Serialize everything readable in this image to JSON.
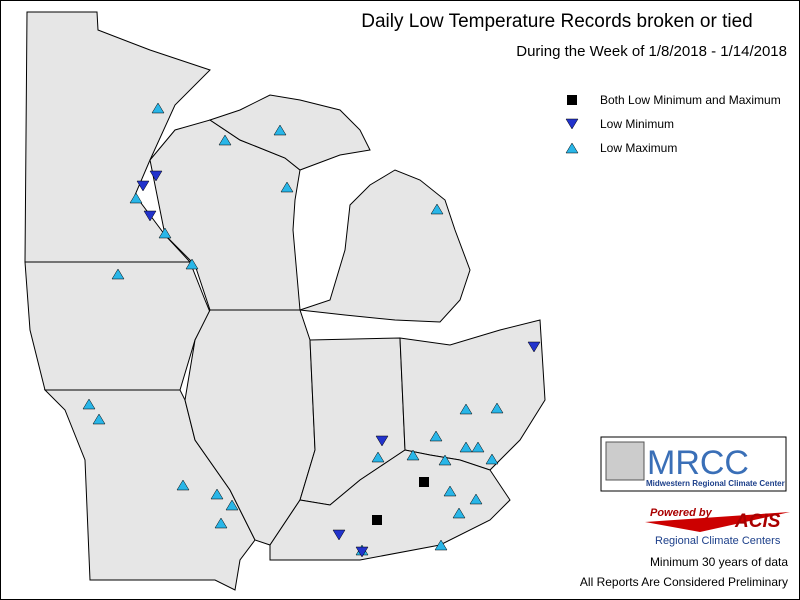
{
  "header": {
    "title": "Daily Low Temperature Records broken or tied",
    "subtitle": "During the Week of 1/8/2018 - 1/14/2018"
  },
  "legend": {
    "items": [
      "Both Low Minimum and Maximum",
      "Low Minimum",
      "Low Maximum"
    ]
  },
  "logos": {
    "mrcc": "MRCC",
    "mrcc_name": "Midwestern Regional Climate Center",
    "powered_by": "Powered by",
    "acis": "ACIS",
    "acis_name": "Regional Climate Centers"
  },
  "footer": {
    "notes": [
      "Minimum 30 years of data",
      "All Reports Are Considered Preliminary"
    ]
  }
}
